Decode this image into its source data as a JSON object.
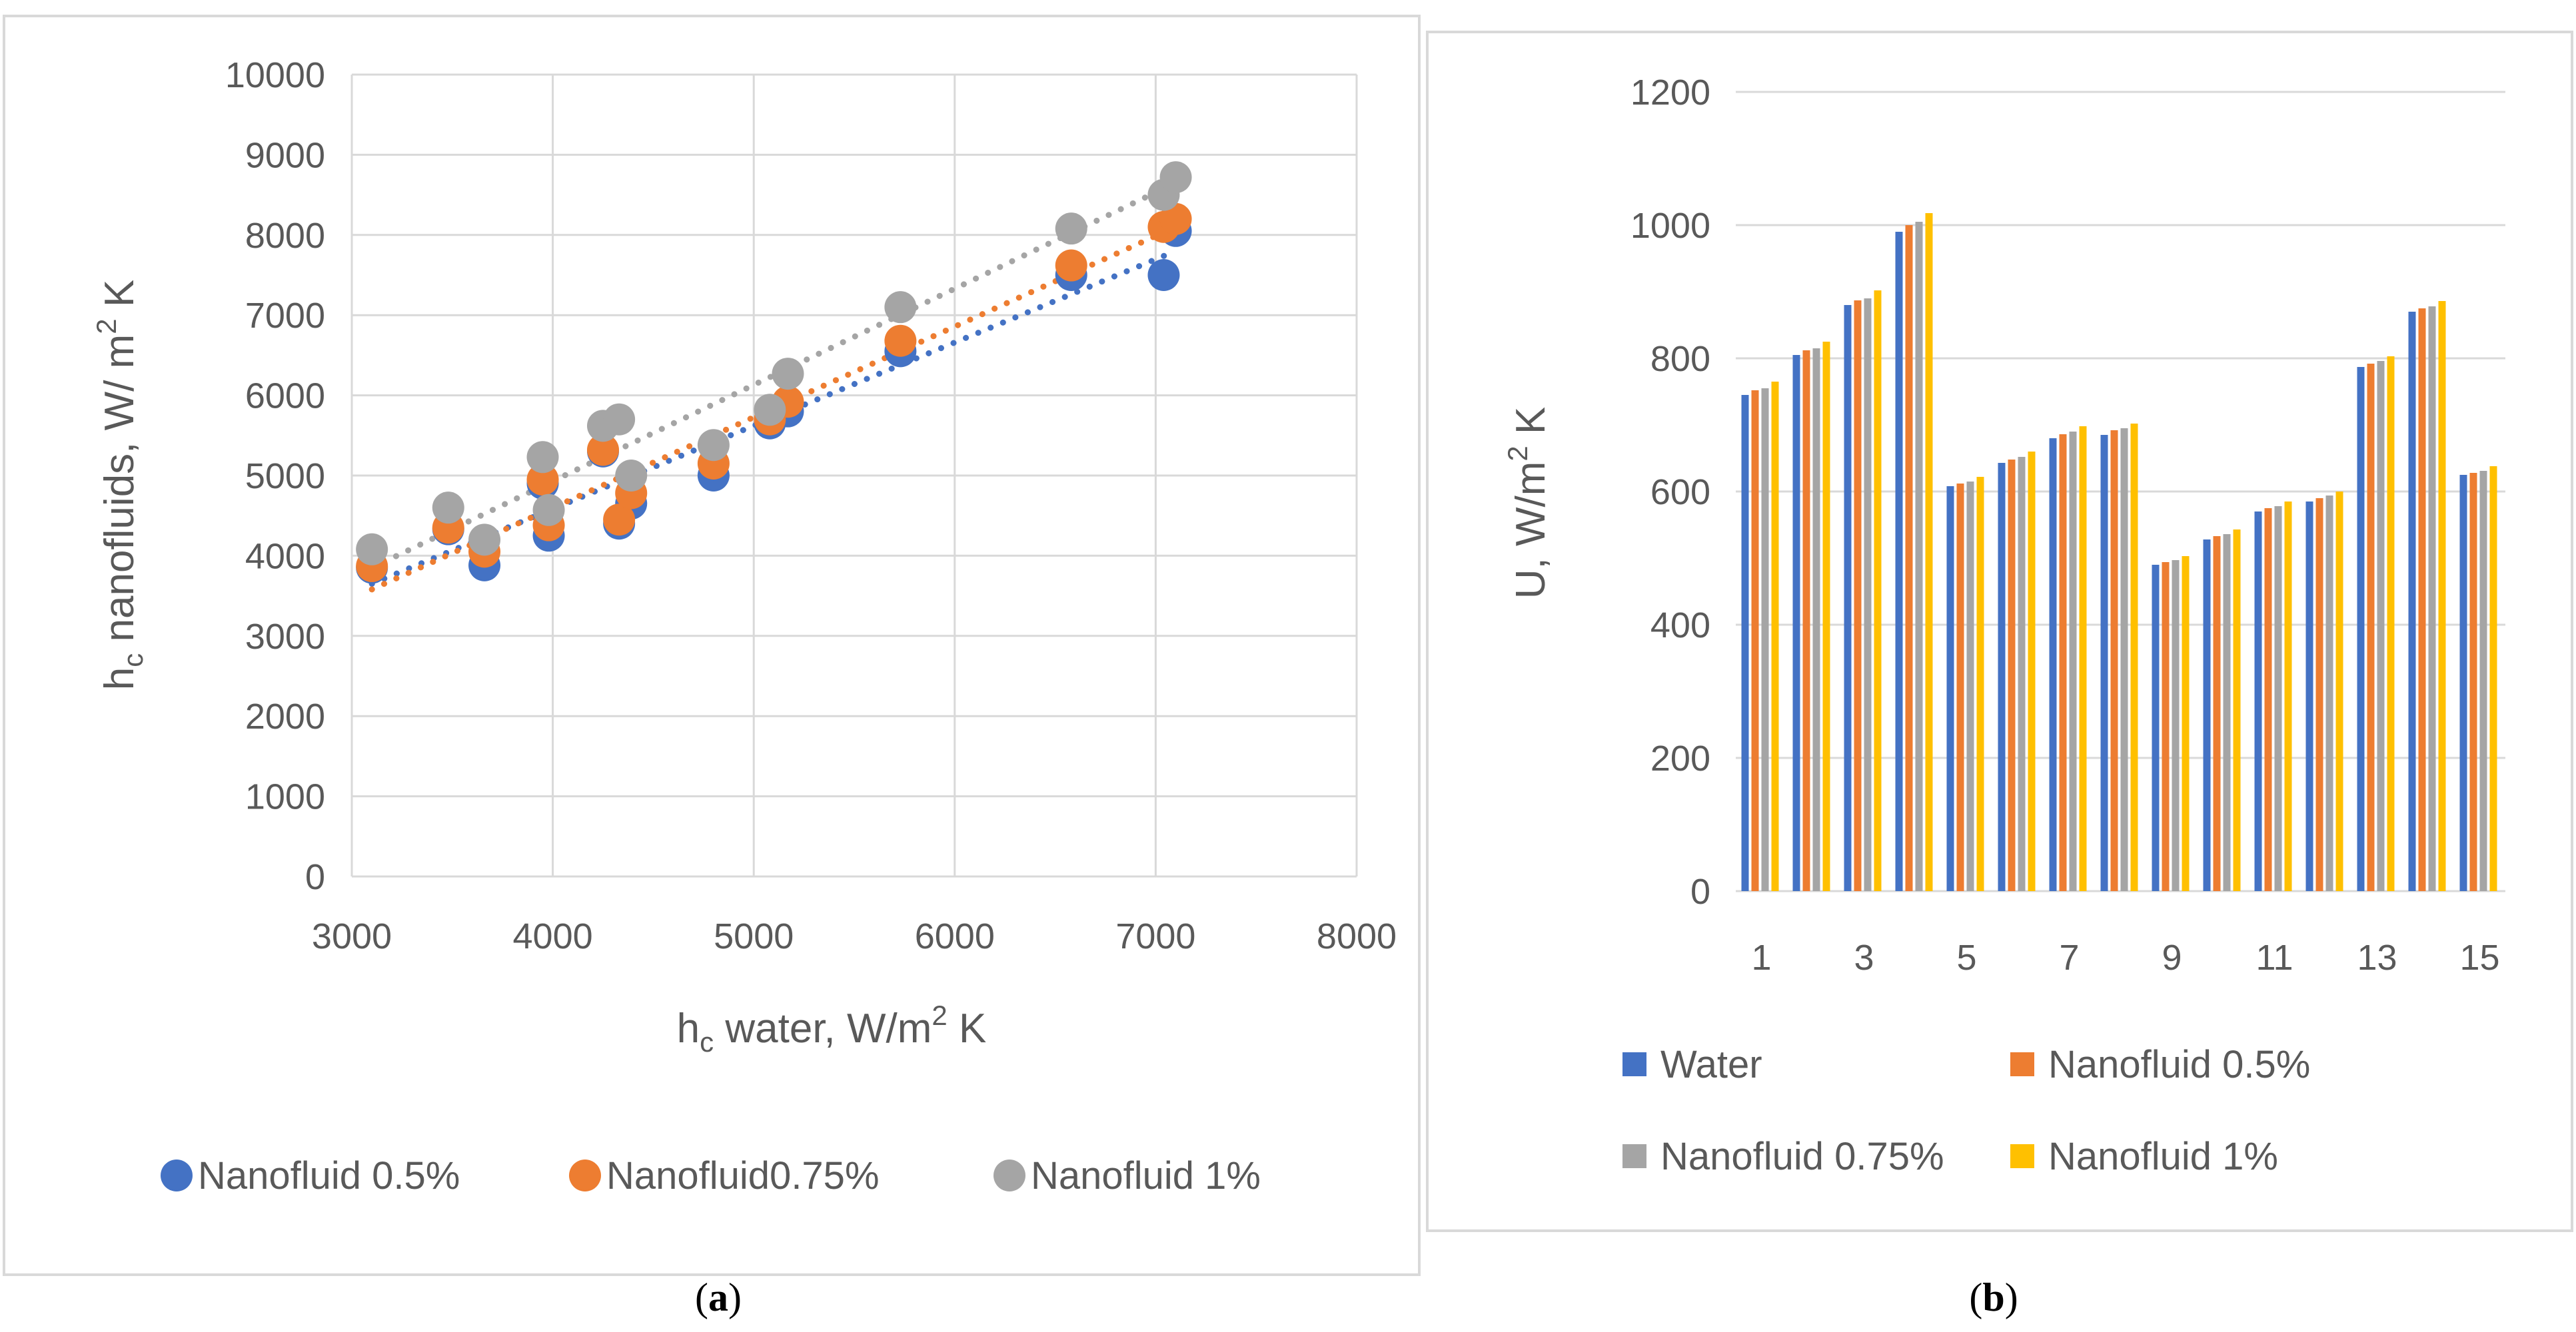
{
  "chart_data": [
    {
      "type": "scatter",
      "panel_label": "a",
      "title": "",
      "xlabel": {
        "main": "h",
        "sub": "c",
        "rest": " water, W/m",
        "sup": "2",
        "tail": " K"
      },
      "ylabel": {
        "main": "h",
        "sub": "c",
        "rest": " nanofluids, W/ m",
        "sup": "2",
        "tail": " K"
      },
      "xlim": [
        3000,
        8000
      ],
      "ylim": [
        0,
        10000
      ],
      "xticks": [
        3000,
        4000,
        5000,
        6000,
        7000,
        8000
      ],
      "yticks": [
        0,
        1000,
        2000,
        3000,
        4000,
        5000,
        6000,
        7000,
        8000,
        9000,
        10000
      ],
      "grid": true,
      "legend_position": "bottom",
      "series": [
        {
          "name": "Nanofluid 0.5%",
          "color": "#4472C4",
          "points": [
            [
              3100,
              3850
            ],
            [
              3480,
              4330
            ],
            [
              3660,
              3880
            ],
            [
              3980,
              4250
            ],
            [
              3950,
              4900
            ],
            [
              4250,
              5300
            ],
            [
              4330,
              4400
            ],
            [
              4390,
              4650
            ],
            [
              4800,
              5000
            ],
            [
              5080,
              5650
            ],
            [
              5170,
              5800
            ],
            [
              5730,
              6550
            ],
            [
              6580,
              7500
            ],
            [
              7040,
              7500
            ],
            [
              7100,
              8050
            ]
          ],
          "trendline": {
            "x": [
              3100,
              7100
            ],
            "y": [
              3650,
              7800
            ]
          }
        },
        {
          "name": "Nanofluid0.75%",
          "color": "#ED7D31",
          "points": [
            [
              3100,
              3870
            ],
            [
              3480,
              4350
            ],
            [
              3660,
              4050
            ],
            [
              3980,
              4380
            ],
            [
              3950,
              4950
            ],
            [
              4250,
              5320
            ],
            [
              4330,
              4450
            ],
            [
              4390,
              4780
            ],
            [
              4800,
              5150
            ],
            [
              5080,
              5700
            ],
            [
              5170,
              5920
            ],
            [
              5730,
              6680
            ],
            [
              6580,
              7620
            ],
            [
              7040,
              8100
            ],
            [
              7100,
              8200
            ]
          ],
          "trendline": {
            "x": [
              3100,
              7100
            ],
            "y": [
              3580,
              8100
            ]
          }
        },
        {
          "name": "Nanofluid 1%",
          "color": "#A5A5A5",
          "points": [
            [
              3100,
              4080
            ],
            [
              3480,
              4600
            ],
            [
              3660,
              4200
            ],
            [
              3980,
              4570
            ],
            [
              3950,
              5230
            ],
            [
              4250,
              5620
            ],
            [
              4330,
              5700
            ],
            [
              4390,
              5000
            ],
            [
              4800,
              5380
            ],
            [
              5080,
              5820
            ],
            [
              5170,
              6270
            ],
            [
              5730,
              7100
            ],
            [
              6580,
              8080
            ],
            [
              7040,
              8500
            ],
            [
              7100,
              8720
            ]
          ],
          "trendline": {
            "x": [
              3100,
              7100
            ],
            "y": [
              3850,
              8650
            ]
          }
        }
      ],
      "caption": "(a)"
    },
    {
      "type": "bar",
      "panel_label": "b",
      "title": "",
      "xlabel": "",
      "ylabel": {
        "main": "U, W/m",
        "sup": "2",
        "tail": " K"
      },
      "ylim": [
        0,
        1200
      ],
      "yticks": [
        0,
        200,
        400,
        600,
        800,
        1000,
        1200
      ],
      "categories": [
        "1",
        "2",
        "3",
        "4",
        "5",
        "6",
        "7",
        "8",
        "9",
        "10",
        "11",
        "12",
        "13",
        "14",
        "15"
      ],
      "category_labels_shown": [
        "1",
        "3",
        "5",
        "7",
        "9",
        "11",
        "13",
        "15"
      ],
      "grid": true,
      "legend_position": "bottom",
      "series": [
        {
          "name": "Water",
          "color": "#4472C4",
          "values": [
            745,
            805,
            880,
            990,
            608,
            643,
            680,
            685,
            490,
            528,
            570,
            585,
            787,
            870,
            625
          ]
        },
        {
          "name": "Nanofluid 0.5%",
          "color": "#ED7D31",
          "values": [
            752,
            812,
            887,
            1000,
            612,
            648,
            686,
            692,
            494,
            533,
            575,
            590,
            792,
            875,
            628
          ]
        },
        {
          "name": "Nanofluid 0.75%",
          "color": "#A5A5A5",
          "values": [
            755,
            815,
            890,
            1005,
            615,
            652,
            690,
            695,
            497,
            536,
            578,
            594,
            796,
            878,
            631
          ]
        },
        {
          "name": "Nanofluid 1%",
          "color": "#FFC000",
          "values": [
            765,
            825,
            902,
            1018,
            622,
            660,
            698,
            702,
            503,
            543,
            585,
            600,
            803,
            886,
            638
          ]
        }
      ],
      "caption": "(b)"
    }
  ]
}
